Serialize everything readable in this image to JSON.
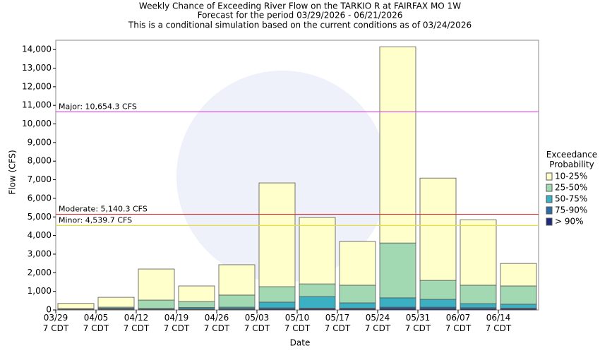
{
  "chart_data": {
    "type": "stacked_bar",
    "title": "Weekly Chance of Exceeding River Flow on the TARKIO R at FAIRFAX MO 1W",
    "subtitle": "Forecast for the period 03/29/2026 - 06/21/2026",
    "subtitle2": "This is a conditional simulation based on the current conditions as of 03/24/2026",
    "x_label": "Date",
    "y_label": "Flow (CFS)",
    "legend_title": "Exceedance Probability",
    "categories": [
      "03/29 7 CDT",
      "04/05 7 CDT",
      "04/12 7 CDT",
      "04/19 7 CDT",
      "04/26 7 CDT",
      "05/03 7 CDT",
      "05/10 7 CDT",
      "05/17 7 CDT",
      "05/24 7 CDT",
      "05/31 7 CDT",
      "06/07 7 CDT",
      "06/14 7 CDT"
    ],
    "series": [
      {
        "name": "> 90%",
        "color": "#1f2a7a",
        "values": [
          10,
          20,
          20,
          30,
          40,
          50,
          50,
          50,
          80,
          70,
          60,
          50
        ]
      },
      {
        "name": "75-90%",
        "color": "#2b6ea6",
        "values": [
          10,
          30,
          20,
          40,
          40,
          60,
          50,
          50,
          70,
          80,
          60,
          50
        ]
      },
      {
        "name": "50-75%",
        "color": "#3bb0c2",
        "values": [
          20,
          50,
          40,
          60,
          70,
          310,
          620,
          280,
          500,
          420,
          220,
          210
        ]
      },
      {
        "name": "25-50%",
        "color": "#a2d9b3",
        "values": [
          30,
          50,
          450,
          320,
          650,
          830,
          680,
          950,
          2950,
          1020,
          990,
          980
        ]
      },
      {
        "name": "10-25%",
        "color": "#ffffcc",
        "values": [
          280,
          530,
          1670,
          840,
          1630,
          5580,
          3570,
          2350,
          10550,
          5500,
          3520,
          1210
        ]
      }
    ],
    "thresholds": [
      {
        "value": 10654.3,
        "label": "Major: 10,654.3 CFS",
        "color": "#e040e0"
      },
      {
        "value": 5140.3,
        "label": "Moderate: 5,140.3 CFS",
        "color": "#e03030"
      },
      {
        "value": 4539.7,
        "label": "Minor: 4,539.7 CFS",
        "color": "#e8e040"
      }
    ],
    "ylim": [
      0,
      14500
    ],
    "yticks": [
      0,
      {
        "value": 1000,
        "label": "1,000"
      },
      {
        "value": 2000,
        "label": "2,000"
      },
      {
        "value": 3000,
        "label": "3,000"
      },
      {
        "value": 4000,
        "label": "4,000"
      },
      {
        "value": 5000,
        "label": "5,000"
      },
      {
        "value": 6000,
        "label": "6,000"
      },
      {
        "value": 7000,
        "label": "7,000"
      },
      {
        "value": 8000,
        "label": "8,000"
      },
      {
        "value": 9000,
        "label": "9,000"
      },
      {
        "value": 10000,
        "label": "10,000"
      },
      {
        "value": 11000,
        "label": "11,000"
      },
      {
        "value": 12000,
        "label": "12,000"
      },
      {
        "value": 13000,
        "label": "13,000"
      },
      {
        "value": 14000,
        "label": "14,000"
      }
    ],
    "grid": false
  }
}
